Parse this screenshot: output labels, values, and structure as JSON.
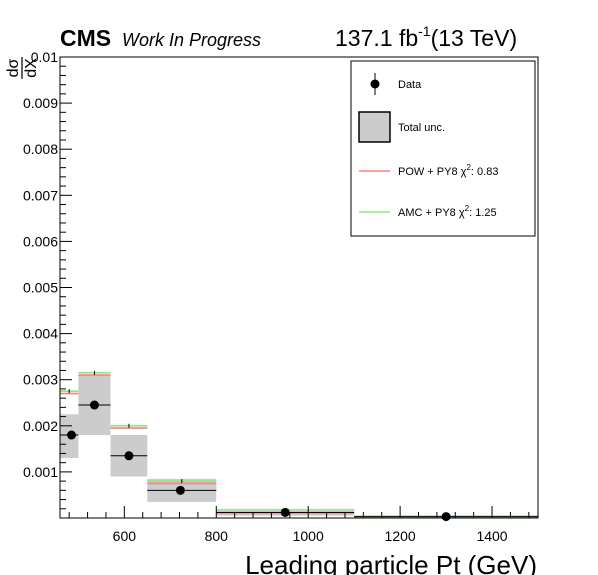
{
  "header": {
    "experiment": "CMS",
    "status": "Work In Progress",
    "lumi_prefix": "137.1 fb",
    "lumi_exp": "-1",
    "energy": "(13 TeV)"
  },
  "chart_data": {
    "type": "histogram",
    "xlabel": "Leading particle Pt (GeV)",
    "ylabel_num": "dσ",
    "ylabel_den": "dX",
    "xlim": [
      460,
      1500
    ],
    "ylim": [
      0,
      0.01
    ],
    "x_ticks": [
      600,
      800,
      1000,
      1200,
      1400
    ],
    "x_tick_labels": [
      "600",
      "800",
      "1000",
      "1200",
      "1400"
    ],
    "y_ticks": [
      0.001,
      0.002,
      0.003,
      0.004,
      0.005,
      0.006,
      0.007,
      0.008,
      0.009,
      0.01
    ],
    "y_tick_labels": [
      "0.001",
      "0.002",
      "0.003",
      "0.004",
      "0.005",
      "0.006",
      "0.007",
      "0.008",
      "0.009",
      "0.01"
    ],
    "bins": [
      [
        460,
        500
      ],
      [
        500,
        570
      ],
      [
        570,
        650
      ],
      [
        650,
        800
      ],
      [
        800,
        1100
      ],
      [
        1100,
        1500
      ]
    ],
    "data": {
      "name": "Data",
      "x": [
        485,
        535,
        610,
        722,
        950,
        1300
      ],
      "y": [
        0.0018,
        0.00245,
        0.00135,
        0.0006,
        0.00012,
        3e-05
      ]
    },
    "total_unc": {
      "name": "Total unc.",
      "low": [
        0.0013,
        0.0018,
        0.0009,
        0.00035,
        5e-05,
        0.0
      ],
      "high": [
        0.00225,
        0.0031,
        0.0018,
        0.00085,
        0.0002,
        6e-05
      ]
    },
    "series": [
      {
        "name": "POW + PY8",
        "chi2": "0.83",
        "color": "#ff7f7f",
        "values": [
          0.0027,
          0.0031,
          0.00195,
          0.00075,
          0.00011,
          1e-05
        ]
      },
      {
        "name": "AMC + PY8",
        "chi2": "1.25",
        "color": "#80ee80",
        "values": [
          0.00275,
          0.00315,
          0.002,
          0.0008,
          0.00013,
          2e-05
        ]
      }
    ],
    "chi2_label": "χ",
    "chi2_exp": "2",
    "legend": {
      "position": "top-right",
      "entries": [
        "Data",
        "Total unc.",
        "POW + PY8",
        "AMC + PY8"
      ]
    }
  }
}
